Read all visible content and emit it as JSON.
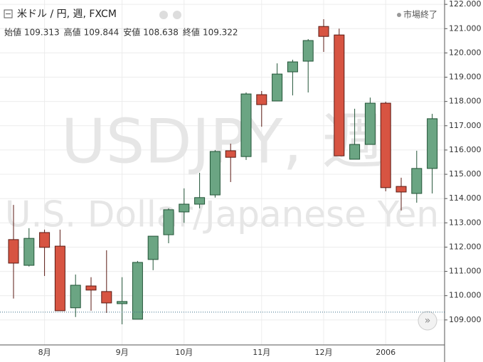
{
  "chart_data": {
    "type": "candlestick",
    "title": "米ドル / 円, 週, FXCM",
    "status": "市場終了",
    "watermark": [
      "USDJPY, 週",
      "U.S. Dollar/Japanese Yen"
    ],
    "ohlc_legend": [
      {
        "label": "始値",
        "value": 109.313
      },
      {
        "label": "高値",
        "value": 109.844
      },
      {
        "label": "安値",
        "value": 108.638
      },
      {
        "label": "終値",
        "value": 109.322
      }
    ],
    "categories": [
      null,
      null,
      "8月",
      null,
      null,
      null,
      null,
      "9月",
      null,
      null,
      null,
      "10月",
      null,
      null,
      null,
      null,
      "11月",
      null,
      null,
      null,
      "12月",
      null,
      null,
      null,
      "2006",
      null,
      null,
      null
    ],
    "open": [
      112.31,
      111.25,
      112.6,
      112.04,
      109.5,
      110.4,
      110.17,
      109.67,
      109.03,
      111.49,
      112.51,
      113.45,
      113.77,
      114.15,
      115.97,
      115.73,
      118.28,
      118.02,
      119.22,
      119.66,
      121.09,
      120.74,
      115.62,
      116.23,
      117.93,
      114.5,
      114.21,
      115.24
    ],
    "high": [
      113.74,
      112.78,
      112.72,
      112.72,
      110.87,
      110.76,
      111.87,
      110.76,
      111.43,
      112.45,
      113.6,
      114.42,
      115.06,
      116.0,
      116.26,
      118.37,
      118.43,
      119.57,
      119.72,
      120.57,
      121.39,
      121.0,
      117.7,
      118.16,
      117.99,
      114.86,
      115.97,
      117.49
    ],
    "low": [
      109.88,
      111.2,
      110.81,
      109.38,
      109.12,
      109.38,
      109.29,
      108.82,
      109.03,
      111.05,
      112.16,
      113.0,
      113.6,
      114.04,
      114.68,
      115.59,
      116.96,
      118.02,
      118.25,
      118.37,
      120.04,
      115.76,
      115.62,
      116.23,
      114.3,
      113.51,
      113.83,
      114.21
    ],
    "close": [
      111.34,
      112.36,
      111.99,
      109.38,
      110.43,
      110.23,
      109.7,
      109.76,
      111.37,
      112.45,
      113.54,
      113.77,
      114.04,
      115.94,
      115.7,
      118.31,
      117.87,
      119.13,
      119.63,
      120.51,
      120.68,
      115.76,
      116.23,
      117.93,
      114.45,
      114.27,
      115.24,
      117.29
    ],
    "up_color": "#6ba583",
    "down_color": "#d75442",
    "ylim": [
      107.97,
      122.18
    ],
    "yticks": [
      {
        "value": 109,
        "label": "109.000"
      },
      {
        "value": 110,
        "label": "110.000"
      },
      {
        "value": 111,
        "label": "111.000"
      },
      {
        "value": 112,
        "label": "112.000"
      },
      {
        "value": 113,
        "label": "113.000"
      },
      {
        "value": 114,
        "label": "114.000"
      },
      {
        "value": 115,
        "label": "115.000"
      },
      {
        "value": 116,
        "label": "116.000"
      },
      {
        "value": 117,
        "label": "117.000"
      },
      {
        "value": 118,
        "label": "118.000"
      },
      {
        "value": 119,
        "label": "119.000"
      },
      {
        "value": 120,
        "label": "120.000"
      },
      {
        "value": 121,
        "label": "121.000"
      },
      {
        "value": 122,
        "label": "122.000"
      }
    ],
    "grid": true
  }
}
